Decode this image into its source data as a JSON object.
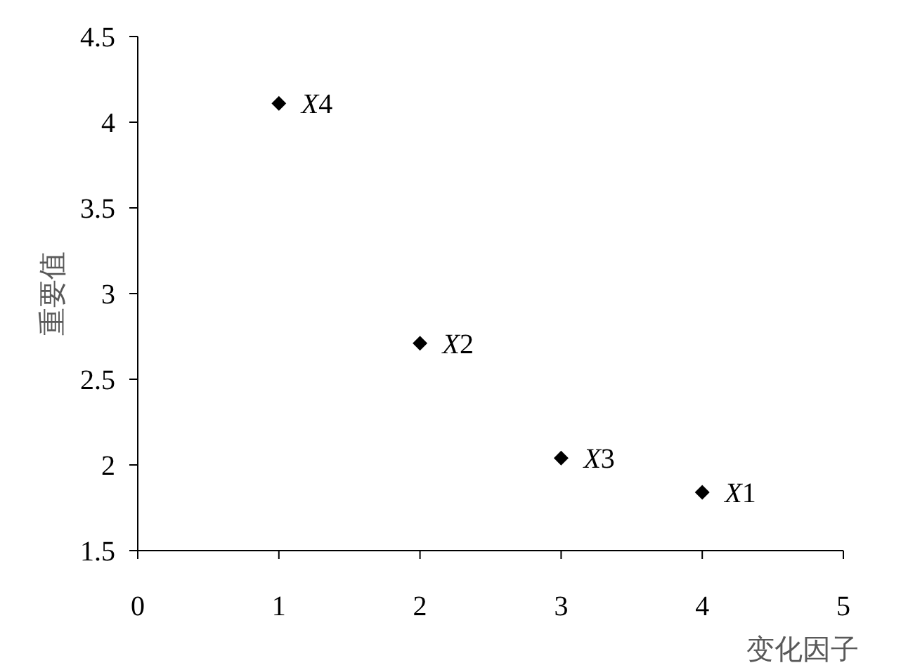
{
  "chart_data": {
    "type": "scatter",
    "xlabel": "变化因子",
    "ylabel": "重要值",
    "x": [
      4,
      2,
      3,
      1
    ],
    "values": [
      1.84,
      2.71,
      2.04,
      4.11
    ],
    "color": "#000000",
    "marker": "diamond",
    "xlim": [
      0,
      5
    ],
    "xticks": [
      0,
      1,
      2,
      3,
      4,
      5
    ],
    "ylim": [
      1.5,
      4.5
    ],
    "yticks": [
      1.5,
      2,
      2.5,
      3,
      3.5,
      4,
      4.5
    ],
    "grid": false,
    "annotations": [
      {
        "text": "X1",
        "x": 4,
        "y": 1.84
      },
      {
        "text": "X2",
        "x": 2,
        "y": 2.71
      },
      {
        "text": "X3",
        "x": 3,
        "y": 2.04
      },
      {
        "text": "X4",
        "x": 1,
        "y": 4.11
      }
    ]
  }
}
